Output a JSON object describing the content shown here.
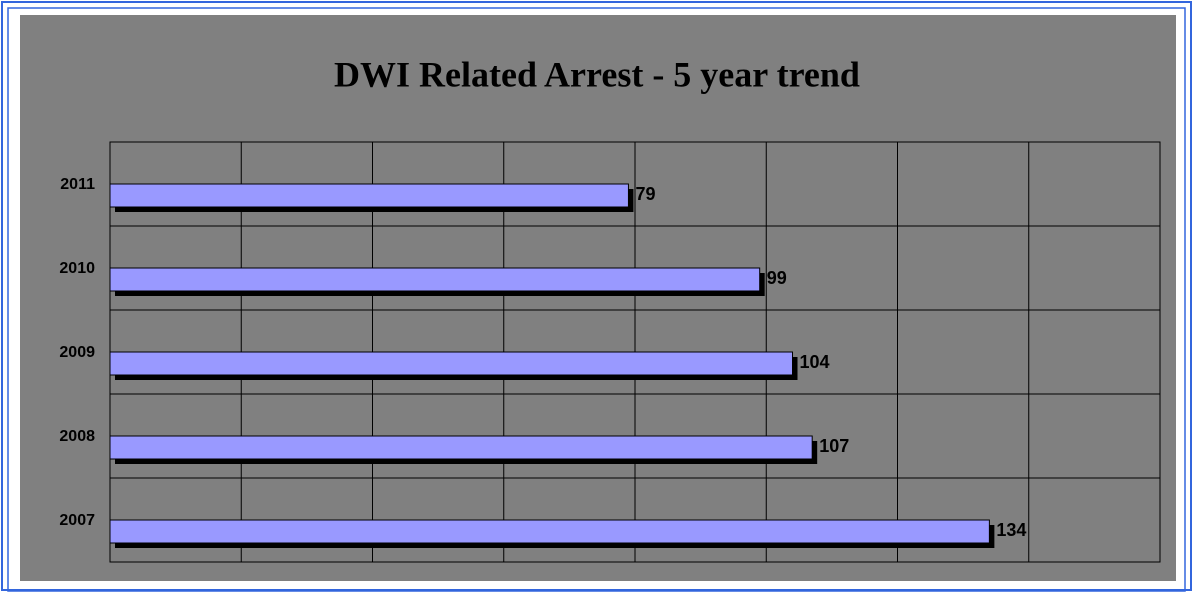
{
  "chart_data": {
    "type": "bar",
    "orientation": "horizontal",
    "title": "DWI Related Arrest - 5 year trend",
    "categories": [
      "2011",
      "2010",
      "2009",
      "2008",
      "2007"
    ],
    "values": [
      79,
      99,
      104,
      107,
      134
    ],
    "color": "#9999ff",
    "xlim": [
      0,
      160
    ],
    "xticks": [
      0,
      20,
      40,
      60,
      80,
      100,
      120,
      140,
      160
    ],
    "grid": true
  }
}
